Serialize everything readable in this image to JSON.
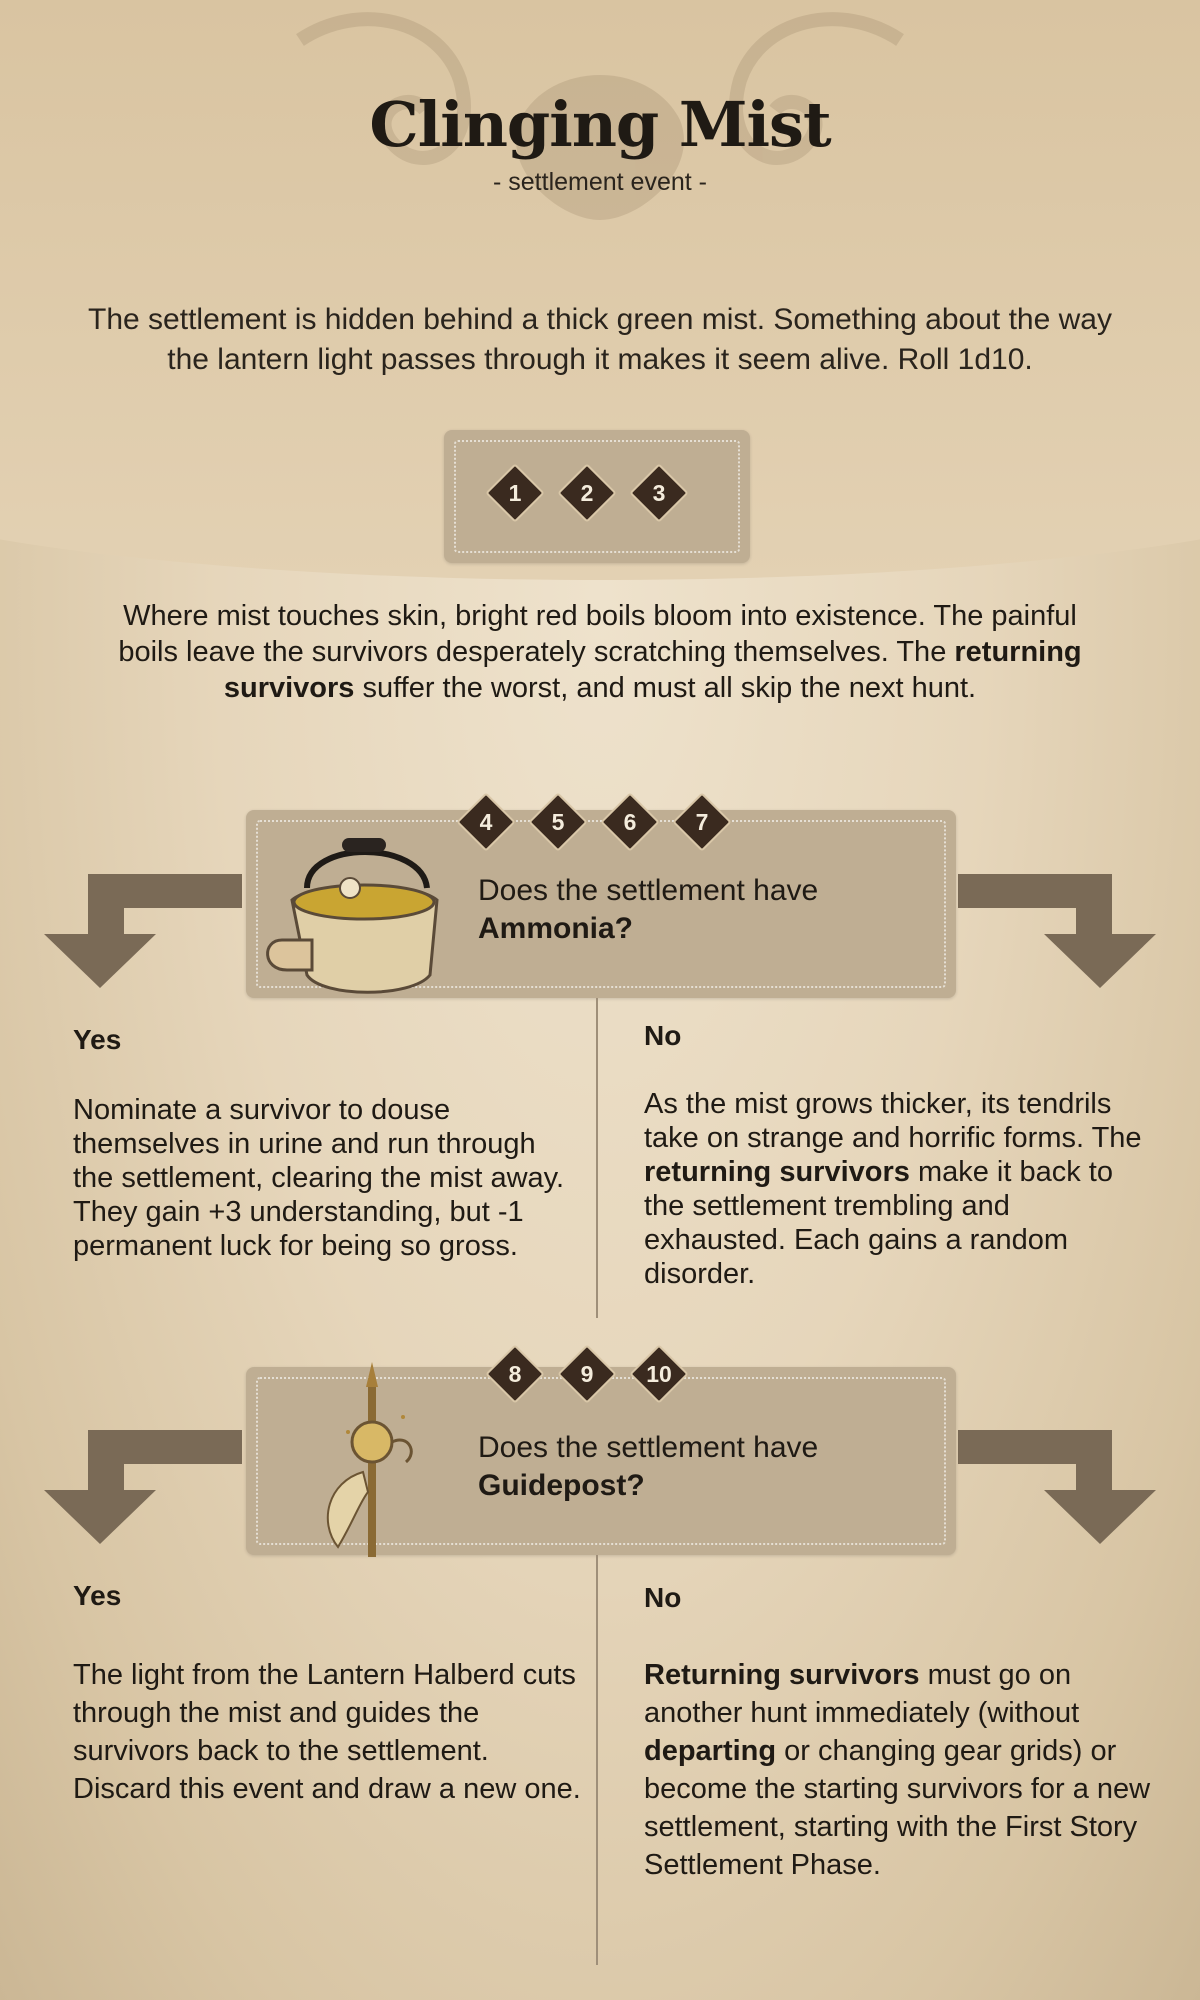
{
  "card": {
    "title": "Clinging Mist",
    "subtitle": "- settlement event -",
    "intro": "The settlement is hidden behind a thick green mist.  Something about the way the lantern light passes through it makes it seem alive. Roll 1d10."
  },
  "roll_1_3": {
    "dice": [
      "1",
      "2",
      "3"
    ],
    "text_part1": "Where mist touches skin, bright red boils bloom into existence.  The painful boils leave the survivors desperately scratching themselves. The ",
    "text_bold": "returning survivors",
    "text_part2": " suffer the worst, and must all skip the next hunt."
  },
  "roll_4_7": {
    "dice": [
      "4",
      "5",
      "6",
      "7"
    ],
    "question_prefix": "Does the settlement have",
    "question_item": "Ammonia?",
    "yes_label": "Yes",
    "yes_text": "Nominate a survivor to douse themselves in urine and run through the settlement, clearing the mist away.  They gain +3 understanding, but -1 permanent luck for being so gross.",
    "no_label": "No",
    "no_text_part1": "As the mist grows thicker, its tendrils take on strange and horrific forms. The ",
    "no_text_bold": "returning survivors",
    "no_text_part2": " make it back to the settlement trembling and exhausted. Each gains a random disorder."
  },
  "roll_8_10": {
    "dice": [
      "8",
      "9",
      "10"
    ],
    "question_prefix": "Does the settlement have",
    "question_item": "Guidepost?",
    "yes_label": "Yes",
    "yes_text": "The light from the Lantern Halberd cuts through the mist and guides the survivors back to the settlement. Discard this event and draw a new one.",
    "no_label": "No",
    "no_text_bold1": "Returning survivors",
    "no_text_part1": " must go on another hunt immediately (without ",
    "no_text_bold2": "departing",
    "no_text_part2": " or changing gear grids) or become the starting survivors for a new settlement, starting with the First Story Settlement Phase."
  },
  "icons": {
    "ammonia": "ammonia-bucket-icon",
    "guidepost": "lantern-halberd-icon",
    "arrow": "bent-arrow-icon"
  },
  "colors": {
    "panel": "#bfae93",
    "die": "#3a2a1f",
    "arrow": "#7a6a56",
    "text": "#1f1a14"
  }
}
